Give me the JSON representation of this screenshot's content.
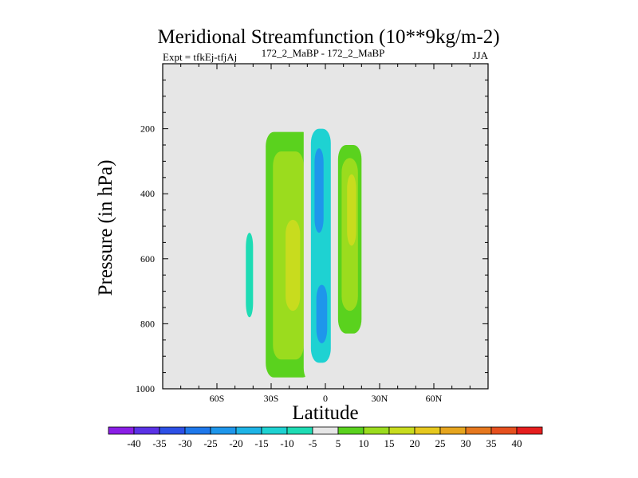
{
  "chart_data": {
    "type": "heatmap",
    "title": "Meridional Streamfunction (10**9kg/m-2)",
    "subtitle_left": "Expt = tfkEj-tfjAj",
    "subtitle_center": "172_2_MaBP - 172_2_MaBP",
    "subtitle_right": "JJA",
    "xlabel": "Latitude",
    "ylabel": "Pressure (in hPa)",
    "xlim": [
      -90,
      90
    ],
    "ylim": [
      1000,
      0
    ],
    "x_ticks": [
      {
        "value": -60,
        "label": "60S"
      },
      {
        "value": -30,
        "label": "30S"
      },
      {
        "value": 0,
        "label": "0"
      },
      {
        "value": 30,
        "label": "30N"
      },
      {
        "value": 60,
        "label": "60N"
      }
    ],
    "y_ticks": [
      {
        "value": 200,
        "label": "200"
      },
      {
        "value": 400,
        "label": "400"
      },
      {
        "value": 600,
        "label": "600"
      },
      {
        "value": 800,
        "label": "800"
      },
      {
        "value": 1000,
        "label": "1000"
      }
    ],
    "background_color": "#e6e6e6",
    "colorbar": {
      "labels": [
        "-40",
        "-35",
        "-30",
        "-25",
        "-20",
        "-15",
        "-10",
        "-5",
        "5",
        "10",
        "15",
        "20",
        "25",
        "30",
        "35",
        "40"
      ],
      "colors": [
        "#8a1ee6",
        "#5a32e6",
        "#2d50e6",
        "#1e78eb",
        "#1e96eb",
        "#1eb4e6",
        "#1ed2d2",
        "#1edcb4",
        "#e6e6e6",
        "#5ad21e",
        "#9bdc1e",
        "#c8dc1e",
        "#e6c81e",
        "#e6a51e",
        "#e6781e",
        "#e6501e",
        "#e61e1e"
      ]
    },
    "features": [
      {
        "name": "cell-60S",
        "value": -5,
        "lat_range": [
          -52,
          -38
        ],
        "p_range": [
          35,
          965
        ]
      },
      {
        "name": "cell-60S-core",
        "value": -10,
        "lat_range": [
          -44,
          -40
        ],
        "p_range": [
          520,
          780
        ]
      },
      {
        "name": "cell-25S",
        "value": 5,
        "lat_range": [
          -33,
          -8
        ],
        "p_range": [
          210,
          965
        ]
      },
      {
        "name": "cell-25S-mid",
        "value": 10,
        "lat_range": [
          -29,
          -12
        ],
        "p_range": [
          270,
          910
        ]
      },
      {
        "name": "cell-25S-core",
        "value": 15,
        "lat_range": [
          -22,
          -14
        ],
        "p_range": [
          480,
          760
        ]
      },
      {
        "name": "cell-eq",
        "value": -5,
        "lat_range": [
          -12,
          6
        ],
        "p_range": [
          0,
          980
        ]
      },
      {
        "name": "cell-eq-mid",
        "value": -15,
        "lat_range": [
          -8,
          3
        ],
        "p_range": [
          200,
          920
        ]
      },
      {
        "name": "cell-eq-core-upper",
        "value": -25,
        "lat_range": [
          -6,
          -1
        ],
        "p_range": [
          260,
          520
        ]
      },
      {
        "name": "cell-eq-core-lower",
        "value": -25,
        "lat_range": [
          -5,
          1
        ],
        "p_range": [
          680,
          860
        ]
      },
      {
        "name": "cell-15N",
        "value": 5,
        "lat_range": [
          7,
          20
        ],
        "p_range": [
          250,
          830
        ]
      },
      {
        "name": "cell-15N-mid",
        "value": 10,
        "lat_range": [
          9,
          18
        ],
        "p_range": [
          290,
          760
        ]
      },
      {
        "name": "cell-15N-core",
        "value": 15,
        "lat_range": [
          12,
          17
        ],
        "p_range": [
          340,
          560
        ]
      }
    ]
  }
}
